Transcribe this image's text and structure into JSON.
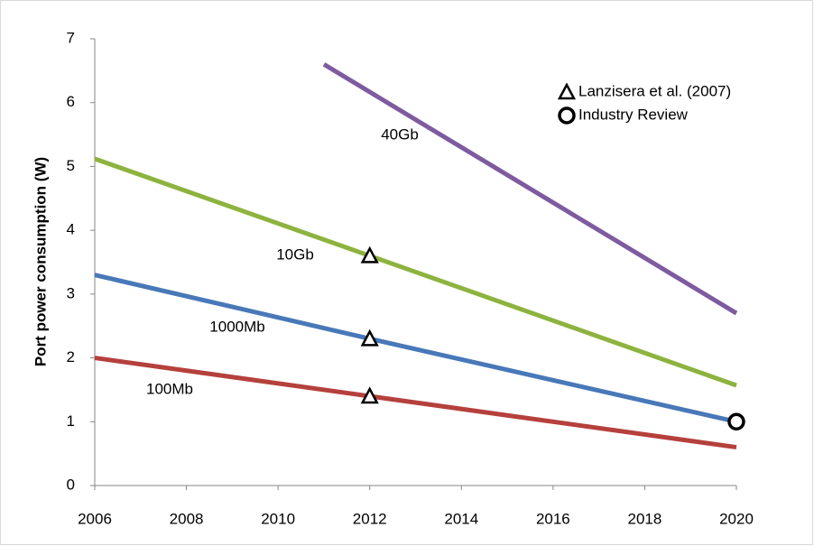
{
  "chart_data": {
    "type": "line",
    "y_label": "Port power consumption (W)",
    "xlim": [
      2006,
      2020
    ],
    "xticks": [
      2006,
      2008,
      2010,
      2012,
      2014,
      2016,
      2018,
      2020
    ],
    "ylim": [
      0,
      7
    ],
    "yticks": [
      0,
      1,
      2,
      3,
      4,
      5,
      6,
      7
    ],
    "grid": false,
    "series": [
      {
        "name": "40Gb",
        "color": "#7e5ba0",
        "x": [
          2011,
          2020
        ],
        "values": [
          6.6,
          2.7
        ]
      },
      {
        "name": "10Gb",
        "color": "#8db33f",
        "x": [
          2006,
          2012,
          2020
        ],
        "values": [
          5.12,
          3.6,
          1.57
        ]
      },
      {
        "name": "1000Mb",
        "color": "#4878b8",
        "x": [
          2006,
          2012,
          2020
        ],
        "values": [
          3.3,
          2.3,
          1.0
        ]
      },
      {
        "name": "100Mb",
        "color": "#b5403c",
        "x": [
          2006,
          2012,
          2015,
          2020
        ],
        "values": [
          2.0,
          1.4,
          1.1,
          0.6
        ]
      }
    ],
    "markers": [
      {
        "name": "Lanzisera et al. (2007)",
        "shape": "triangle",
        "x": [
          2012,
          2012,
          2012
        ],
        "values": [
          3.6,
          2.3,
          1.4
        ]
      },
      {
        "name": "Industry Review",
        "shape": "circle",
        "x": [
          2020
        ],
        "values": [
          1.0
        ]
      }
    ],
    "legend": "top-right"
  }
}
